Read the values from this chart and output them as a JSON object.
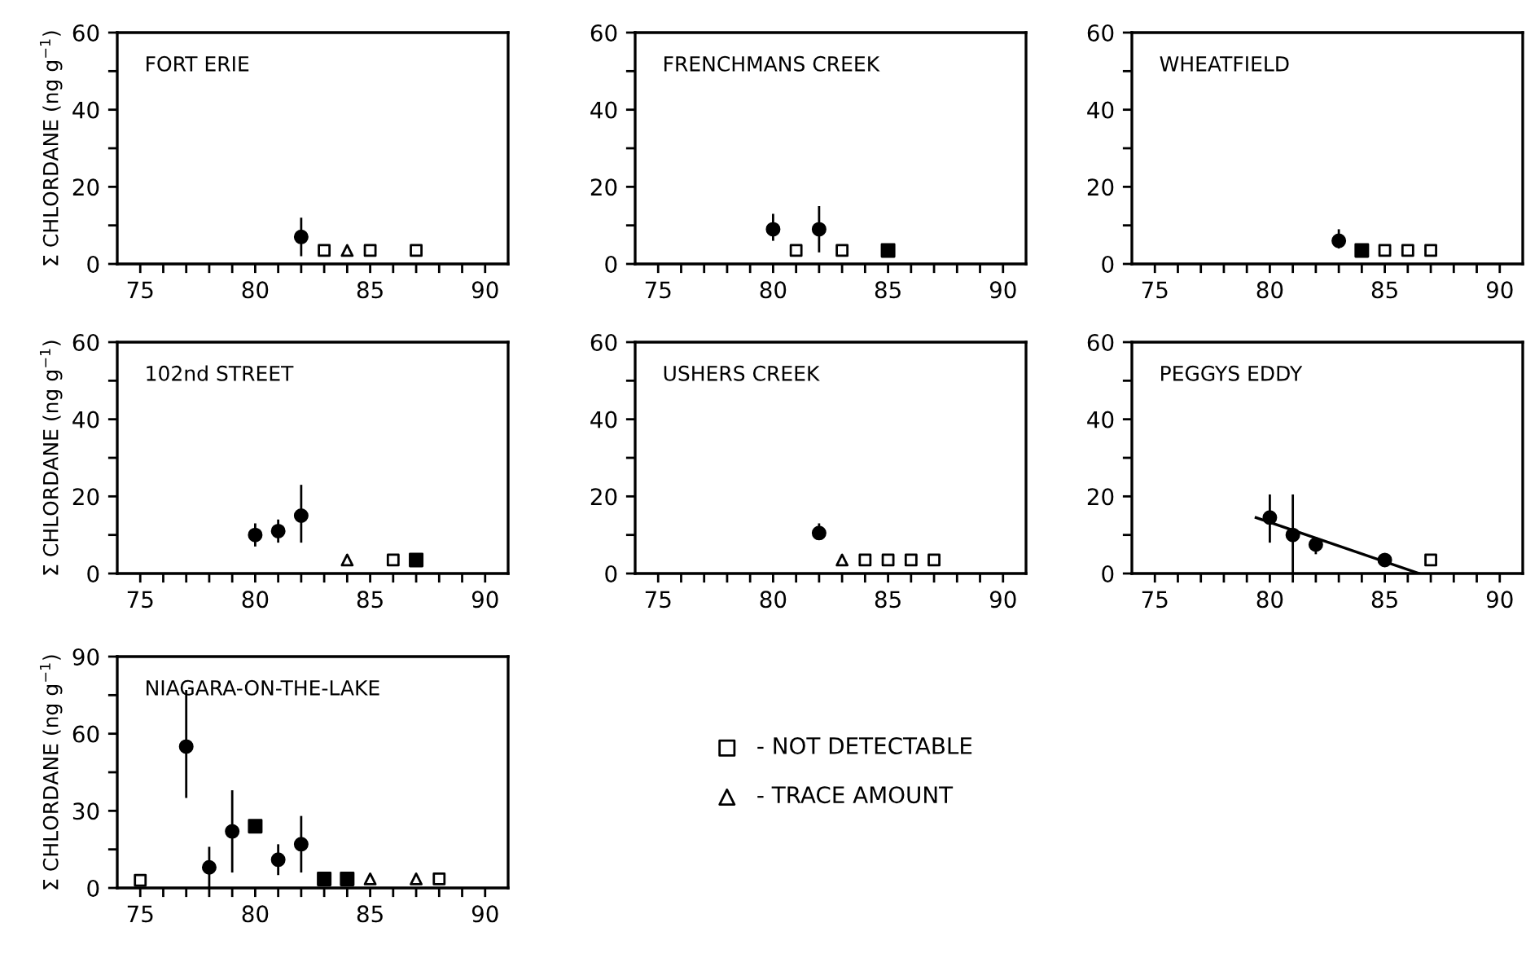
{
  "chart_data": [
    {
      "type": "scatter",
      "title": "FORT ERIE",
      "ylabel": "Σ CHLORDANE (ng g$^{−1}$)",
      "xlim": [
        74,
        91
      ],
      "ylim": [
        0,
        60
      ],
      "xticks": [
        75,
        {
          "value": 76,
          "label": null
        },
        {
          "value": 77,
          "label": null
        },
        {
          "value": 78,
          "label": null
        },
        {
          "value": 79,
          "label": null
        },
        80,
        {
          "value": 81,
          "label": null
        },
        {
          "value": 82,
          "label": null
        },
        {
          "value": 83,
          "label": null
        },
        {
          "value": 84,
          "label": null
        },
        85,
        {
          "value": 86,
          "label": null
        },
        {
          "value": 87,
          "label": null
        },
        {
          "value": 88,
          "label": null
        },
        {
          "value": 89,
          "label": null
        },
        90
      ],
      "yticks": [
        0,
        {
          "value": 10,
          "label": null
        },
        20,
        {
          "value": 30,
          "label": null
        },
        40,
        {
          "value": 50,
          "label": null
        },
        60
      ],
      "grid": false,
      "legend": false,
      "series": [
        {
          "marker": "circle",
          "color": "#000000",
          "x": [
            82
          ],
          "values": [
            7
          ],
          "errors": [
            [
              2,
              12
            ]
          ]
        },
        {
          "marker": "square",
          "color": "#000000",
          "x": [
            83,
            85,
            87
          ],
          "values": [
            3.5,
            3.5,
            3.5
          ]
        },
        {
          "marker": "triangle",
          "color": "#000000",
          "x": [
            84
          ],
          "values": [
            3.5
          ]
        }
      ]
    },
    {
      "type": "scatter",
      "title": "FRENCHMANS CREEK",
      "xlim": [
        74,
        91
      ],
      "ylim": [
        0,
        60
      ],
      "xticks": [
        75,
        {
          "value": 76,
          "label": null
        },
        {
          "value": 77,
          "label": null
        },
        {
          "value": 78,
          "label": null
        },
        {
          "value": 79,
          "label": null
        },
        80,
        {
          "value": 81,
          "label": null
        },
        {
          "value": 82,
          "label": null
        },
        {
          "value": 83,
          "label": null
        },
        {
          "value": 84,
          "label": null
        },
        85,
        {
          "value": 86,
          "label": null
        },
        {
          "value": 87,
          "label": null
        },
        {
          "value": 88,
          "label": null
        },
        {
          "value": 89,
          "label": null
        },
        90
      ],
      "yticks": [
        0,
        {
          "value": 10,
          "label": null
        },
        20,
        {
          "value": 30,
          "label": null
        },
        40,
        {
          "value": 50,
          "label": null
        },
        60
      ],
      "grid": false,
      "legend": false,
      "series": [
        {
          "marker": "circle",
          "color": "#000000",
          "x": [
            80,
            82
          ],
          "values": [
            9,
            9
          ],
          "errors": [
            [
              6,
              13
            ],
            [
              3,
              15
            ]
          ]
        },
        {
          "marker": "square",
          "color": "#000000",
          "x": [
            85
          ],
          "values": [
            3.5
          ],
          "errors": [
            null
          ]
        },
        {
          "marker": "square",
          "color": "#000000",
          "x": [
            81,
            83
          ],
          "values": [
            3.5,
            3.5
          ]
        }
      ]
    },
    {
      "type": "scatter",
      "title": "WHEATFIELD",
      "xlim": [
        74,
        91
      ],
      "ylim": [
        0,
        60
      ],
      "xticks": [
        75,
        {
          "value": 76,
          "label": null
        },
        {
          "value": 77,
          "label": null
        },
        {
          "value": 78,
          "label": null
        },
        {
          "value": 79,
          "label": null
        },
        80,
        {
          "value": 81,
          "label": null
        },
        {
          "value": 82,
          "label": null
        },
        {
          "value": 83,
          "label": null
        },
        {
          "value": 84,
          "label": null
        },
        85,
        {
          "value": 86,
          "label": null
        },
        {
          "value": 87,
          "label": null
        },
        {
          "value": 88,
          "label": null
        },
        {
          "value": 89,
          "label": null
        },
        90
      ],
      "yticks": [
        0,
        {
          "value": 10,
          "label": null
        },
        20,
        {
          "value": 30,
          "label": null
        },
        40,
        {
          "value": 50,
          "label": null
        },
        60
      ],
      "grid": false,
      "legend": false,
      "series": [
        {
          "marker": "circle",
          "color": "#000000",
          "x": [
            83
          ],
          "values": [
            6
          ],
          "errors": [
            [
              4,
              9
            ]
          ]
        },
        {
          "marker": "square",
          "color": "#000000",
          "x": [
            84
          ],
          "values": [
            3.5
          ],
          "errors": [
            null
          ]
        },
        {
          "marker": "square",
          "color": "#000000",
          "x": [
            85,
            86,
            87
          ],
          "values": [
            3.5,
            3.5,
            3.5
          ]
        }
      ]
    },
    {
      "type": "scatter",
      "title": "102nd STREET",
      "ylabel": "Σ CHLORDANE (ng g$^{−1}$)",
      "xlim": [
        74,
        91
      ],
      "ylim": [
        0,
        60
      ],
      "xticks": [
        75,
        {
          "value": 76,
          "label": null
        },
        {
          "value": 77,
          "label": null
        },
        {
          "value": 78,
          "label": null
        },
        {
          "value": 79,
          "label": null
        },
        80,
        {
          "value": 81,
          "label": null
        },
        {
          "value": 82,
          "label": null
        },
        {
          "value": 83,
          "label": null
        },
        {
          "value": 84,
          "label": null
        },
        85,
        {
          "value": 86,
          "label": null
        },
        {
          "value": 87,
          "label": null
        },
        {
          "value": 88,
          "label": null
        },
        {
          "value": 89,
          "label": null
        },
        90
      ],
      "yticks": [
        0,
        {
          "value": 10,
          "label": null
        },
        20,
        {
          "value": 30,
          "label": null
        },
        40,
        {
          "value": 50,
          "label": null
        },
        60
      ],
      "grid": false,
      "legend": false,
      "series": [
        {
          "marker": "circle",
          "color": "#000000",
          "x": [
            80,
            81,
            82
          ],
          "values": [
            10,
            11,
            15
          ],
          "errors": [
            [
              7,
              13
            ],
            [
              8,
              14
            ],
            [
              8,
              23
            ]
          ]
        },
        {
          "marker": "square",
          "color": "#000000",
          "x": [
            87
          ],
          "values": [
            3.5
          ],
          "errors": [
            null
          ]
        },
        {
          "marker": "square",
          "color": "#000000",
          "x": [
            86
          ],
          "values": [
            3.5
          ]
        },
        {
          "marker": "triangle",
          "color": "#000000",
          "x": [
            84
          ],
          "values": [
            3.5
          ]
        }
      ]
    },
    {
      "type": "scatter",
      "title": "USHERS CREEK",
      "xlim": [
        74,
        91
      ],
      "ylim": [
        0,
        60
      ],
      "xticks": [
        75,
        {
          "value": 76,
          "label": null
        },
        {
          "value": 77,
          "label": null
        },
        {
          "value": 78,
          "label": null
        },
        {
          "value": 79,
          "label": null
        },
        80,
        {
          "value": 81,
          "label": null
        },
        {
          "value": 82,
          "label": null
        },
        {
          "value": 83,
          "label": null
        },
        {
          "value": 84,
          "label": null
        },
        85,
        {
          "value": 86,
          "label": null
        },
        {
          "value": 87,
          "label": null
        },
        {
          "value": 88,
          "label": null
        },
        {
          "value": 89,
          "label": null
        },
        90
      ],
      "yticks": [
        0,
        {
          "value": 10,
          "label": null
        },
        20,
        {
          "value": 30,
          "label": null
        },
        40,
        {
          "value": 50,
          "label": null
        },
        60
      ],
      "grid": false,
      "legend": false,
      "series": [
        {
          "marker": "circle",
          "color": "#000000",
          "x": [
            82
          ],
          "values": [
            10.5
          ],
          "errors": [
            [
              9,
              13
            ]
          ]
        },
        {
          "marker": "square",
          "color": "#000000",
          "x": [
            84,
            85,
            86,
            87
          ],
          "values": [
            3.5,
            3.5,
            3.5,
            3.5
          ]
        },
        {
          "marker": "triangle",
          "color": "#000000",
          "x": [
            83
          ],
          "values": [
            3.5
          ]
        }
      ]
    },
    {
      "type": "scatter",
      "title": "PEGGYS EDDY",
      "xlim": [
        74,
        91
      ],
      "ylim": [
        0,
        60
      ],
      "xticks": [
        75,
        {
          "value": 76,
          "label": null
        },
        {
          "value": 77,
          "label": null
        },
        {
          "value": 78,
          "label": null
        },
        {
          "value": 79,
          "label": null
        },
        80,
        {
          "value": 81,
          "label": null
        },
        {
          "value": 82,
          "label": null
        },
        {
          "value": 83,
          "label": null
        },
        {
          "value": 84,
          "label": null
        },
        85,
        {
          "value": 86,
          "label": null
        },
        {
          "value": 87,
          "label": null
        },
        {
          "value": 88,
          "label": null
        },
        {
          "value": 89,
          "label": null
        },
        90
      ],
      "yticks": [
        0,
        {
          "value": 10,
          "label": null
        },
        20,
        {
          "value": 30,
          "label": null
        },
        40,
        {
          "value": 50,
          "label": null
        },
        60
      ],
      "grid": false,
      "legend": false,
      "series": [
        {
          "marker": "circle",
          "color": "#000000",
          "x": [
            80,
            81,
            82,
            85
          ],
          "values": [
            14.5,
            10,
            7.5,
            3.5
          ],
          "errors": [
            [
              8,
              20.5
            ],
            [
              0,
              20.5
            ],
            [
              5,
              9.5
            ],
            null
          ]
        },
        {
          "marker": "square",
          "color": "#000000",
          "x": [
            87
          ],
          "values": [
            3.5
          ]
        },
        {
          "type": "line",
          "marker": "none",
          "line_style": "solid",
          "color": "#000000",
          "x": [
            79.4,
            86.5
          ],
          "values": [
            14.5,
            0
          ]
        }
      ]
    },
    {
      "type": "scatter",
      "title": "NIAGARA-ON-THE-LAKE",
      "ylabel": "Σ CHLORDANE (ng g$^{−1}$)",
      "xlim": [
        74,
        91
      ],
      "ylim": [
        0,
        90
      ],
      "xticks": [
        75,
        {
          "value": 76,
          "label": null
        },
        {
          "value": 77,
          "label": null
        },
        {
          "value": 78,
          "label": null
        },
        {
          "value": 79,
          "label": null
        },
        80,
        {
          "value": 81,
          "label": null
        },
        {
          "value": 82,
          "label": null
        },
        {
          "value": 83,
          "label": null
        },
        {
          "value": 84,
          "label": null
        },
        85,
        {
          "value": 86,
          "label": null
        },
        {
          "value": 87,
          "label": null
        },
        {
          "value": 88,
          "label": null
        },
        {
          "value": 89,
          "label": null
        },
        90
      ],
      "yticks": [
        0,
        {
          "value": 15,
          "label": null
        },
        30,
        {
          "value": 45,
          "label": null
        },
        60,
        {
          "value": 75,
          "label": null
        },
        90
      ],
      "grid": false,
      "legend": "right",
      "series": [
        {
          "marker": "circle",
          "color": "#000000",
          "x": [
            77,
            78,
            79,
            81,
            82
          ],
          "values": [
            55,
            8,
            22,
            11,
            17
          ],
          "errors": [
            [
              35,
              77
            ],
            [
              0,
              16
            ],
            [
              6,
              38
            ],
            [
              5,
              17
            ],
            [
              6,
              28
            ]
          ]
        },
        {
          "marker": "square",
          "color": "#000000",
          "x": [
            80,
            83,
            84
          ],
          "values": [
            24,
            3.5,
            3.5
          ],
          "errors": [
            null,
            null,
            null
          ]
        },
        {
          "marker": "square",
          "name": "- NOT DETECTABLE",
          "color": "#000000",
          "x": [
            75,
            88
          ],
          "values": [
            3,
            3.5
          ]
        },
        {
          "marker": "triangle",
          "name": "- TRACE AMOUNT",
          "color": "#000000",
          "x": [
            85,
            87
          ],
          "values": [
            3.5,
            3.5
          ]
        }
      ]
    }
  ]
}
